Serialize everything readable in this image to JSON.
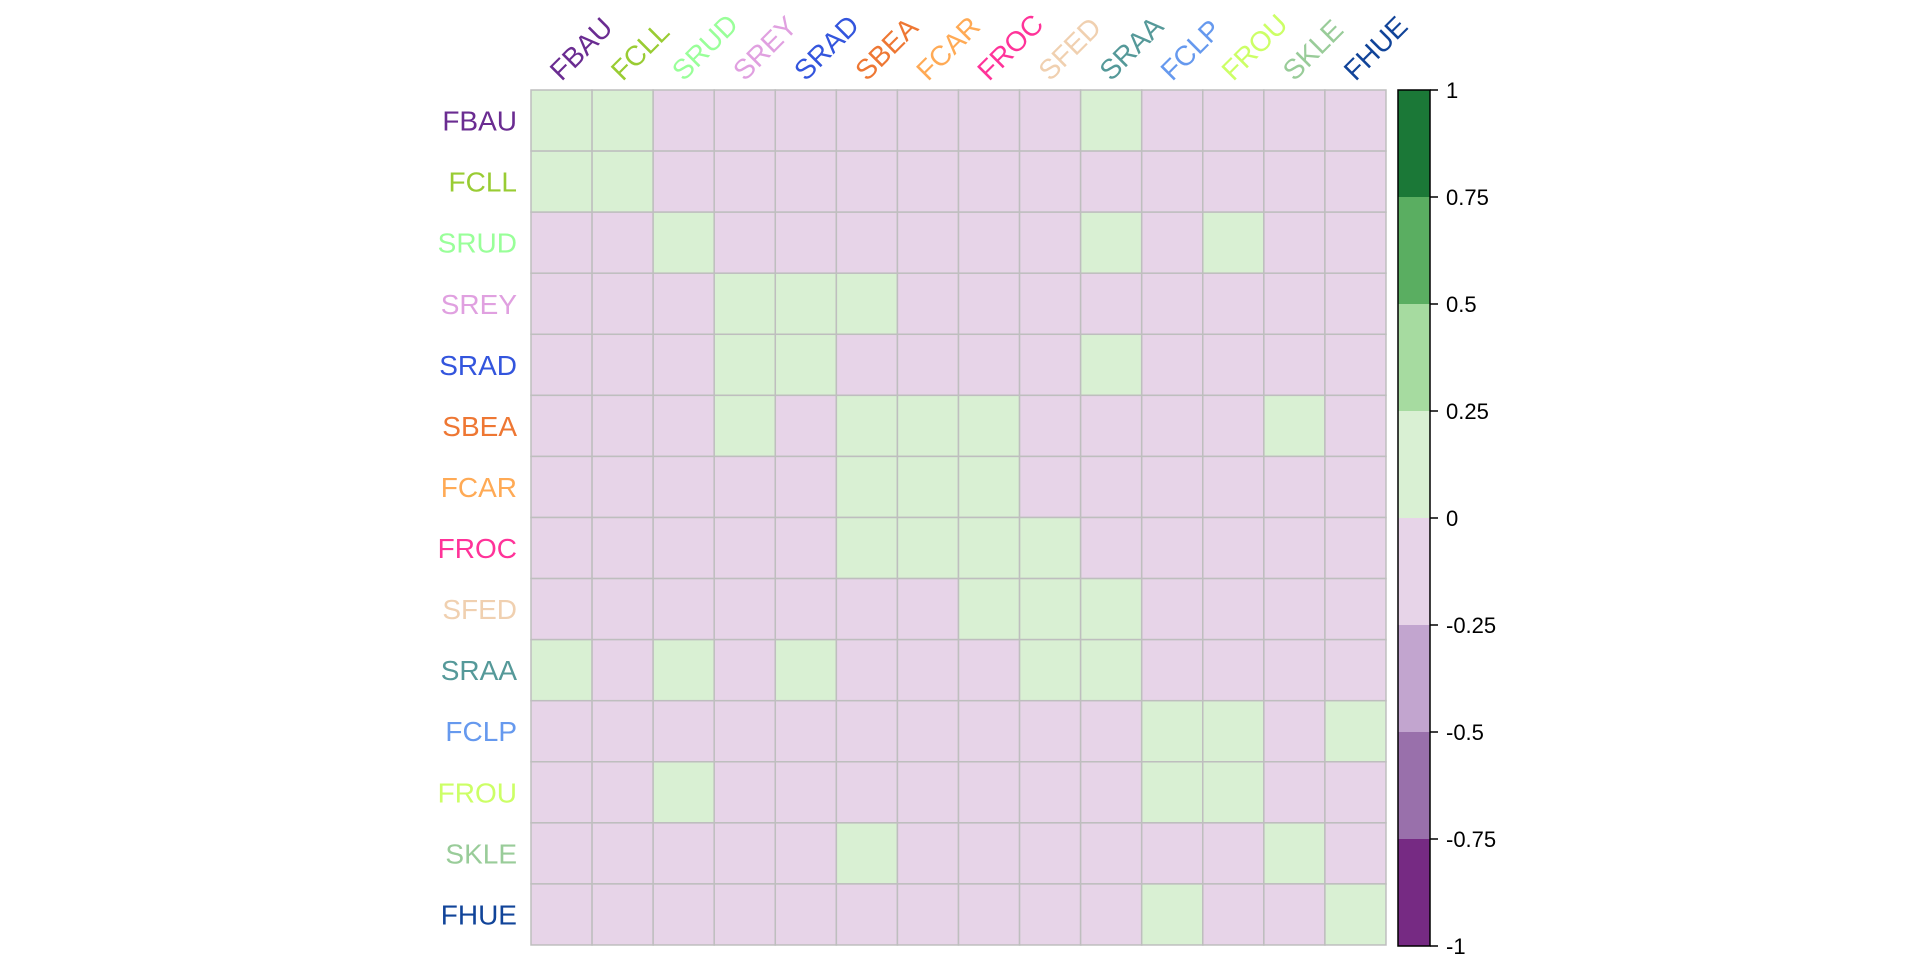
{
  "chart_data": {
    "type": "heatmap",
    "title": "",
    "labels": [
      "FBAU",
      "FCLL",
      "SRUD",
      "SREY",
      "SRAD",
      "SBEA",
      "FCAR",
      "FROC",
      "SFED",
      "SRAA",
      "FCLP",
      "FROU",
      "SKLE",
      "FHUE"
    ],
    "label_colors": [
      "#6A2C91",
      "#99CC33",
      "#99FF99",
      "#E0A0E0",
      "#3355DD",
      "#EE7733",
      "#FFAA55",
      "#FF3399",
      "#F0D0B0",
      "#559999",
      "#6699EE",
      "#CCFF66",
      "#99CC99",
      "#114499"
    ],
    "cells": [
      [
        0.1,
        0.1,
        -0.1,
        -0.1,
        -0.1,
        -0.1,
        -0.1,
        -0.1,
        -0.1,
        0.1,
        -0.1,
        -0.1,
        -0.1,
        -0.1
      ],
      [
        0.1,
        0.1,
        -0.1,
        -0.1,
        -0.1,
        -0.1,
        -0.1,
        -0.1,
        -0.1,
        -0.1,
        -0.1,
        -0.1,
        -0.1,
        -0.1
      ],
      [
        -0.1,
        -0.1,
        0.1,
        -0.1,
        -0.1,
        -0.1,
        -0.1,
        -0.1,
        -0.1,
        0.1,
        -0.1,
        0.1,
        -0.1,
        -0.1
      ],
      [
        -0.1,
        -0.1,
        -0.1,
        0.1,
        0.1,
        0.1,
        -0.1,
        -0.1,
        -0.1,
        -0.1,
        -0.1,
        -0.1,
        -0.1,
        -0.1
      ],
      [
        -0.1,
        -0.1,
        -0.1,
        0.1,
        0.1,
        -0.1,
        -0.1,
        -0.1,
        -0.1,
        0.1,
        -0.1,
        -0.1,
        -0.1,
        -0.1
      ],
      [
        -0.1,
        -0.1,
        -0.1,
        0.1,
        -0.1,
        0.1,
        0.1,
        0.1,
        -0.1,
        -0.1,
        -0.1,
        -0.1,
        0.1,
        -0.1
      ],
      [
        -0.1,
        -0.1,
        -0.1,
        -0.1,
        -0.1,
        0.1,
        0.1,
        0.1,
        -0.1,
        -0.1,
        -0.1,
        -0.1,
        -0.1,
        -0.1
      ],
      [
        -0.1,
        -0.1,
        -0.1,
        -0.1,
        -0.1,
        0.1,
        0.1,
        0.1,
        0.1,
        -0.1,
        -0.1,
        -0.1,
        -0.1,
        -0.1
      ],
      [
        -0.1,
        -0.1,
        -0.1,
        -0.1,
        -0.1,
        -0.1,
        -0.1,
        0.1,
        0.1,
        0.1,
        -0.1,
        -0.1,
        -0.1,
        -0.1
      ],
      [
        0.1,
        -0.1,
        0.1,
        -0.1,
        0.1,
        -0.1,
        -0.1,
        -0.1,
        0.1,
        0.1,
        -0.1,
        -0.1,
        -0.1,
        -0.1
      ],
      [
        -0.1,
        -0.1,
        -0.1,
        -0.1,
        -0.1,
        -0.1,
        -0.1,
        -0.1,
        -0.1,
        -0.1,
        0.1,
        0.1,
        -0.1,
        0.1
      ],
      [
        -0.1,
        -0.1,
        0.1,
        -0.1,
        -0.1,
        -0.1,
        -0.1,
        -0.1,
        -0.1,
        -0.1,
        0.1,
        0.1,
        -0.1,
        -0.1
      ],
      [
        -0.1,
        -0.1,
        -0.1,
        -0.1,
        -0.1,
        0.1,
        -0.1,
        -0.1,
        -0.1,
        -0.1,
        -0.1,
        -0.1,
        0.1,
        -0.1
      ],
      [
        -0.1,
        -0.1,
        -0.1,
        -0.1,
        -0.1,
        -0.1,
        -0.1,
        -0.1,
        -0.1,
        -0.1,
        0.1,
        -0.1,
        -0.1,
        0.1
      ]
    ],
    "color_scale": {
      "range": [
        -1,
        1
      ],
      "ticks": [
        1,
        0.75,
        0.5,
        0.25,
        0,
        -0.25,
        -0.5,
        -0.75,
        -1
      ],
      "tick_labels": [
        "1",
        "0.75",
        "0.5",
        "0.25",
        "0",
        "-0.25",
        "-0.5",
        "-0.75",
        "-1"
      ],
      "bins": [
        {
          "from": 0.75,
          "to": 1,
          "color": "#1B7837"
        },
        {
          "from": 0.5,
          "to": 0.75,
          "color": "#5AAE61"
        },
        {
          "from": 0.25,
          "to": 0.5,
          "color": "#A6DBA0"
        },
        {
          "from": 0,
          "to": 0.25,
          "color": "#D9F0D3"
        },
        {
          "from": -0.25,
          "to": 0,
          "color": "#E7D4E8"
        },
        {
          "from": -0.5,
          "to": -0.25,
          "color": "#C2A5CF"
        },
        {
          "from": -0.75,
          "to": -0.5,
          "color": "#9970AB"
        },
        {
          "from": -1,
          "to": -0.75,
          "color": "#762A83"
        }
      ]
    },
    "grid_color": "#BEBEBE",
    "legend_position": "right"
  }
}
